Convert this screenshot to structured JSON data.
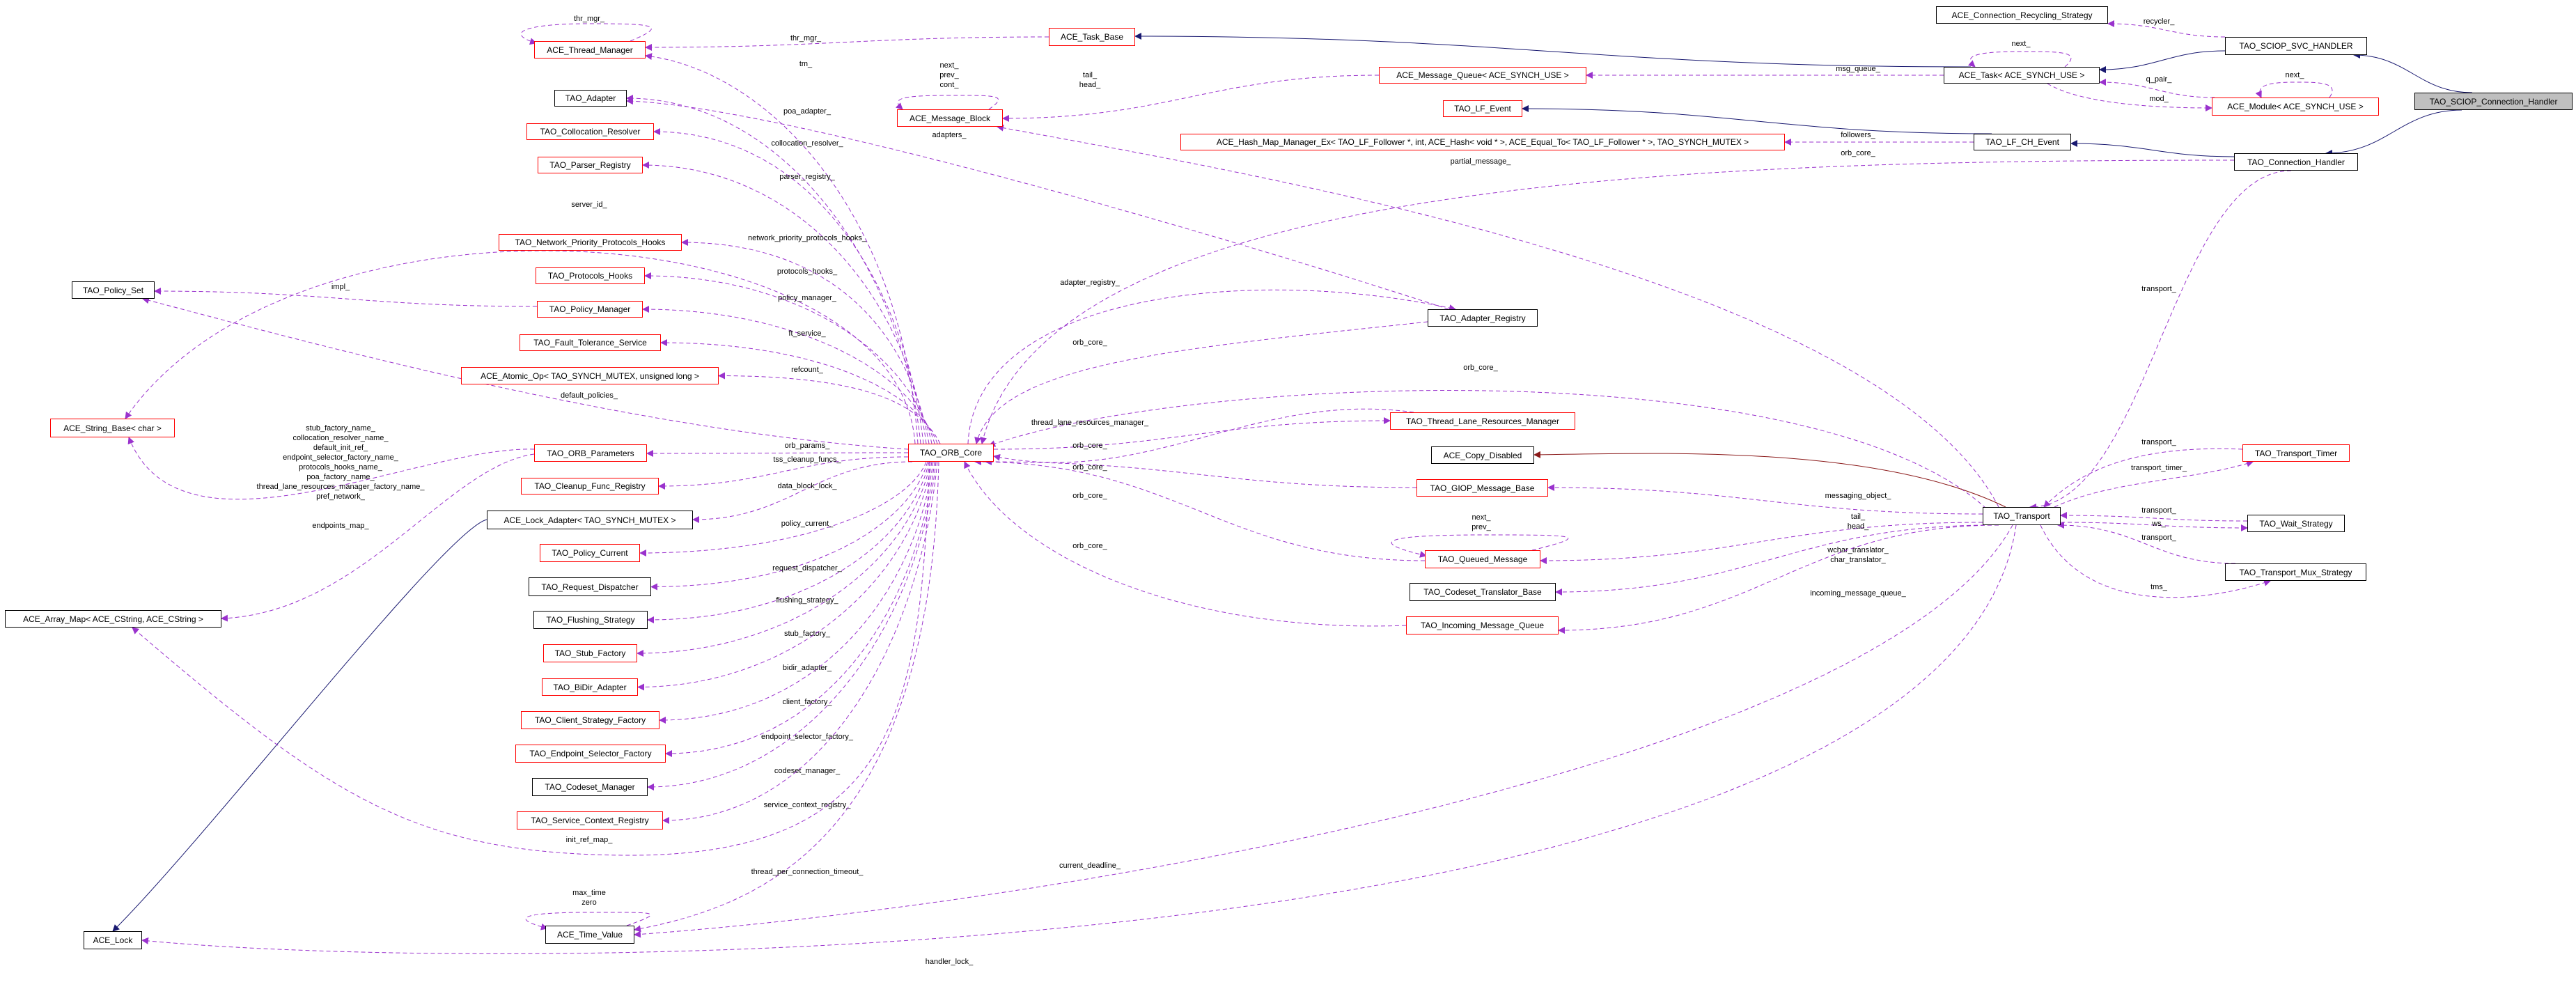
{
  "colors": {
    "member_edge": "#9a32cd",
    "public_inheritance": "#191970",
    "protected_inheritance": "#8b1a1a",
    "documented_border": "#000000",
    "undocumented_border": "#ff0000",
    "focus_fill": "#bfbfbf"
  },
  "nodes": [
    {
      "id": "TM",
      "label": "ACE_Thread_Manager",
      "border": "red"
    },
    {
      "id": "AD",
      "label": "TAO_Adapter",
      "border": "black"
    },
    {
      "id": "CR",
      "label": "TAO_Collocation_Resolver",
      "border": "red"
    },
    {
      "id": "PR",
      "label": "TAO_Parser_Registry",
      "border": "red"
    },
    {
      "id": "NP",
      "label": "TAO_Network_Priority_Protocols_Hooks",
      "border": "red"
    },
    {
      "id": "PH",
      "label": "TAO_Protocols_Hooks",
      "border": "red"
    },
    {
      "id": "PM",
      "label": "TAO_Policy_Manager",
      "border": "red"
    },
    {
      "id": "FT",
      "label": "TAO_Fault_Tolerance_Service",
      "border": "red"
    },
    {
      "id": "AO",
      "label": "ACE_Atomic_Op< TAO_SYNCH_MUTEX, unsigned long >",
      "border": "red"
    },
    {
      "id": "PS",
      "label": "TAO_Policy_Set",
      "border": "black"
    },
    {
      "id": "SB",
      "label": "ACE_String_Base< char >",
      "border": "red"
    },
    {
      "id": "OP",
      "label": "TAO_ORB_Parameters",
      "border": "red"
    },
    {
      "id": "CF",
      "label": "TAO_Cleanup_Func_Registry",
      "border": "red"
    },
    {
      "id": "LA",
      "label": "ACE_Lock_Adapter< TAO_SYNCH_MUTEX >",
      "border": "black"
    },
    {
      "id": "PC",
      "label": "TAO_Policy_Current",
      "border": "red"
    },
    {
      "id": "RD",
      "label": "TAO_Request_Dispatcher",
      "border": "black"
    },
    {
      "id": "FS",
      "label": "TAO_Flushing_Strategy",
      "border": "black"
    },
    {
      "id": "SF",
      "label": "TAO_Stub_Factory",
      "border": "red"
    },
    {
      "id": "BA",
      "label": "TAO_BiDir_Adapter",
      "border": "red"
    },
    {
      "id": "CS",
      "label": "TAO_Client_Strategy_Factory",
      "border": "red"
    },
    {
      "id": "ES",
      "label": "TAO_Endpoint_Selector_Factory",
      "border": "red"
    },
    {
      "id": "CM",
      "label": "TAO_Codeset_Manager",
      "border": "black"
    },
    {
      "id": "SC",
      "label": "TAO_Service_Context_Registry",
      "border": "red"
    },
    {
      "id": "TV",
      "label": "ACE_Time_Value",
      "border": "black"
    },
    {
      "id": "LK",
      "label": "ACE_Lock",
      "border": "black"
    },
    {
      "id": "AM",
      "label": "ACE_Array_Map< ACE_CString, ACE_CString >",
      "border": "black"
    },
    {
      "id": "TB",
      "label": "ACE_Task_Base",
      "border": "red"
    },
    {
      "id": "MB",
      "label": "ACE_Message_Block",
      "border": "red"
    },
    {
      "id": "MQ",
      "label": "ACE_Message_Queue< ACE_SYNCH_USE >",
      "border": "red"
    },
    {
      "id": "LE",
      "label": "TAO_LF_Event",
      "border": "red"
    },
    {
      "id": "HM",
      "label": "ACE_Hash_Map_Manager_Ex< TAO_LF_Follower *, int, ACE_Hash< void * >, ACE_Equal_To< TAO_LF_Follower * >, TAO_SYNCH_MUTEX >",
      "border": "red"
    },
    {
      "id": "AR",
      "label": "TAO_Adapter_Registry",
      "border": "black"
    },
    {
      "id": "OC",
      "label": "TAO_ORB_Core",
      "border": "red"
    },
    {
      "id": "TL",
      "label": "TAO_Thread_Lane_Resources_Manager",
      "border": "red"
    },
    {
      "id": "CD",
      "label": "ACE_Copy_Disabled",
      "border": "black"
    },
    {
      "id": "GM",
      "label": "TAO_GIOP_Message_Base",
      "border": "red"
    },
    {
      "id": "QM",
      "label": "TAO_Queued_Message",
      "border": "red"
    },
    {
      "id": "CT",
      "label": "TAO_Codeset_Translator_Base",
      "border": "black"
    },
    {
      "id": "IQ",
      "label": "TAO_Incoming_Message_Queue",
      "border": "red"
    },
    {
      "id": "RS",
      "label": "ACE_Connection_Recycling_Strategy",
      "border": "black"
    },
    {
      "id": "SV",
      "label": "TAO_SCIOP_SVC_HANDLER",
      "border": "black"
    },
    {
      "id": "AT",
      "label": "ACE_Task< ACE_SYNCH_USE >",
      "border": "black"
    },
    {
      "id": "MO",
      "label": "ACE_Module< ACE_SYNCH_USE >",
      "border": "red"
    },
    {
      "id": "SH",
      "label": "TAO_SCIOP_Connection_Handler",
      "border": "black",
      "focus": true
    },
    {
      "id": "LC",
      "label": "TAO_LF_CH_Event",
      "border": "black"
    },
    {
      "id": "CH",
      "label": "TAO_Connection_Handler",
      "border": "black"
    },
    {
      "id": "TT",
      "label": "TAO_Transport_Timer",
      "border": "red"
    },
    {
      "id": "TR",
      "label": "TAO_Transport",
      "border": "black"
    },
    {
      "id": "WS",
      "label": "TAO_Wait_Strategy",
      "border": "black"
    },
    {
      "id": "MX",
      "label": "TAO_Transport_Mux_Strategy",
      "border": "black"
    }
  ],
  "edges": [
    {
      "from": "TM",
      "to": "TM",
      "label": [
        "thr_mgr_"
      ],
      "kind": "member"
    },
    {
      "from": "TB",
      "to": "TM",
      "label": [
        "thr_mgr_"
      ],
      "kind": "member"
    },
    {
      "from": "OC",
      "to": "TM",
      "label": [
        "tm_"
      ],
      "kind": "member"
    },
    {
      "from": "OC",
      "to": "AD",
      "label": [
        "poa_adapter_"
      ],
      "kind": "member"
    },
    {
      "from": "OC",
      "to": "CR",
      "label": [
        "collocation_resolver_"
      ],
      "kind": "member"
    },
    {
      "from": "OC",
      "to": "PR",
      "label": [
        "parser_registry_"
      ],
      "kind": "member"
    },
    {
      "from": "OC",
      "to": "SB",
      "label": [
        "server_id_"
      ],
      "kind": "member"
    },
    {
      "from": "OC",
      "to": "NP",
      "label": [
        "network_priority_protocols_hooks_"
      ],
      "kind": "member"
    },
    {
      "from": "OC",
      "to": "PH",
      "label": [
        "protocols_hooks_"
      ],
      "kind": "member"
    },
    {
      "from": "OC",
      "to": "PM",
      "label": [
        "policy_manager_"
      ],
      "kind": "member"
    },
    {
      "from": "PM",
      "to": "PS",
      "label": [
        "impl_"
      ],
      "kind": "member"
    },
    {
      "from": "OC",
      "to": "FT",
      "label": [
        "ft_service_"
      ],
      "kind": "member"
    },
    {
      "from": "OC",
      "to": "AO",
      "label": [
        "refcount_"
      ],
      "kind": "member"
    },
    {
      "from": "OC",
      "to": "PS",
      "label": [
        "default_policies_"
      ],
      "kind": "member"
    },
    {
      "from": "OP",
      "to": "SB",
      "label": [
        "stub_factory_name_",
        "collocation_resolver_name_",
        "default_init_ref_",
        "endpoint_selector_factory_name_",
        "protocols_hooks_name_",
        "poa_factory_name_",
        "thread_lane_resources_manager_factory_name_",
        "pref_network_"
      ],
      "kind": "member"
    },
    {
      "from": "OP",
      "to": "AM",
      "label": [
        "endpoints_map_"
      ],
      "kind": "member"
    },
    {
      "from": "OC",
      "to": "OP",
      "label": [
        "orb_params_"
      ],
      "kind": "member"
    },
    {
      "from": "OC",
      "to": "CF",
      "label": [
        "tss_cleanup_funcs_"
      ],
      "kind": "member"
    },
    {
      "from": "OC",
      "to": "LA",
      "label": [
        "data_block_lock_"
      ],
      "kind": "member"
    },
    {
      "from": "LA",
      "to": "LK",
      "label": [],
      "kind": "public"
    },
    {
      "from": "OC",
      "to": "PC",
      "label": [
        "policy_current_"
      ],
      "kind": "member"
    },
    {
      "from": "OC",
      "to": "RD",
      "label": [
        "request_dispatcher_"
      ],
      "kind": "member"
    },
    {
      "from": "OC",
      "to": "FS",
      "label": [
        "flushing_strategy_"
      ],
      "kind": "member"
    },
    {
      "from": "OC",
      "to": "SF",
      "label": [
        "stub_factory_"
      ],
      "kind": "member"
    },
    {
      "from": "OC",
      "to": "BA",
      "label": [
        "bidir_adapter_"
      ],
      "kind": "member"
    },
    {
      "from": "OC",
      "to": "CS",
      "label": [
        "client_factory_"
      ],
      "kind": "member"
    },
    {
      "from": "OC",
      "to": "ES",
      "label": [
        "endpoint_selector_factory_"
      ],
      "kind": "member"
    },
    {
      "from": "OC",
      "to": "CM",
      "label": [
        "codeset_manager_"
      ],
      "kind": "member"
    },
    {
      "from": "OC",
      "to": "SC",
      "label": [
        "service_context_registry_"
      ],
      "kind": "member"
    },
    {
      "from": "OC",
      "to": "AM",
      "label": [
        "init_ref_map_"
      ],
      "kind": "member"
    },
    {
      "from": "OC",
      "to": "TV",
      "label": [
        "thread_per_connection_timeout_"
      ],
      "kind": "member"
    },
    {
      "from": "TV",
      "to": "TV",
      "label": [
        "max_time",
        "zero"
      ],
      "kind": "member"
    },
    {
      "from": "MB",
      "to": "MB",
      "label": [
        "next_",
        "prev_",
        "cont_"
      ],
      "kind": "member"
    },
    {
      "from": "MQ",
      "to": "MB",
      "label": [
        "tail_",
        "head_"
      ],
      "kind": "member"
    },
    {
      "from": "AR",
      "to": "AD",
      "label": [
        "adapters_"
      ],
      "kind": "member"
    },
    {
      "from": "AR",
      "to": "OC",
      "label": [
        "orb_core_"
      ],
      "kind": "member"
    },
    {
      "from": "OC",
      "to": "AR",
      "label": [
        "adapter_registry_"
      ],
      "kind": "member"
    },
    {
      "from": "TR",
      "to": "MB",
      "label": [
        "partial_message_"
      ],
      "kind": "member"
    },
    {
      "from": "CH",
      "to": "OC",
      "label": [
        "orb_core_"
      ],
      "kind": "member"
    },
    {
      "from": "TR",
      "to": "OC",
      "label": [
        "orb_core_"
      ],
      "kind": "member"
    },
    {
      "from": "OC",
      "to": "TL",
      "label": [
        "thread_lane_resources_manager_"
      ],
      "kind": "member"
    },
    {
      "from": "TL",
      "to": "OC",
      "label": [
        "orb_core_"
      ],
      "kind": "member"
    },
    {
      "from": "GM",
      "to": "OC",
      "label": [
        "orb_core_"
      ],
      "kind": "member"
    },
    {
      "from": "QM",
      "to": "OC",
      "label": [
        "orb_core_"
      ],
      "kind": "member"
    },
    {
      "from": "IQ",
      "to": "OC",
      "label": [
        "orb_core_"
      ],
      "kind": "member"
    },
    {
      "from": "QM",
      "to": "QM",
      "label": [
        "next_",
        "prev_"
      ],
      "kind": "member"
    },
    {
      "from": "TR",
      "to": "CD",
      "label": [],
      "kind": "protected"
    },
    {
      "from": "TR",
      "to": "GM",
      "label": [
        "messaging_object_"
      ],
      "kind": "member"
    },
    {
      "from": "TR",
      "to": "QM",
      "label": [
        "tail_",
        "head_"
      ],
      "kind": "member"
    },
    {
      "from": "TR",
      "to": "CT",
      "label": [
        "wchar_translator_",
        "char_translator_"
      ],
      "kind": "member"
    },
    {
      "from": "TR",
      "to": "IQ",
      "label": [
        "incoming_message_queue_"
      ],
      "kind": "member"
    },
    {
      "from": "TR",
      "to": "TV",
      "label": [
        "current_deadline_"
      ],
      "kind": "member"
    },
    {
      "from": "TR",
      "to": "LK",
      "label": [
        "handler_lock_"
      ],
      "kind": "member"
    },
    {
      "from": "CH",
      "to": "TR",
      "label": [
        "transport_"
      ],
      "kind": "member"
    },
    {
      "from": "TT",
      "to": "TR",
      "label": [
        "transport_"
      ],
      "kind": "member"
    },
    {
      "from": "TR",
      "to": "TT",
      "label": [
        "transport_timer_"
      ],
      "kind": "member"
    },
    {
      "from": "WS",
      "to": "TR",
      "label": [
        "transport_"
      ],
      "kind": "member"
    },
    {
      "from": "TR",
      "to": "WS",
      "label": [
        "ws_"
      ],
      "kind": "member"
    },
    {
      "from": "MX",
      "to": "TR",
      "label": [
        "transport_"
      ],
      "kind": "member"
    },
    {
      "from": "TR",
      "to": "MX",
      "label": [
        "tms_"
      ],
      "kind": "member"
    },
    {
      "from": "SH",
      "to": "SV",
      "label": [],
      "kind": "public"
    },
    {
      "from": "SH",
      "to": "CH",
      "label": [],
      "kind": "public"
    },
    {
      "from": "SV",
      "to": "AT",
      "label": [],
      "kind": "public"
    },
    {
      "from": "SV",
      "to": "RS",
      "label": [
        "recycler_"
      ],
      "kind": "member"
    },
    {
      "from": "AT",
      "to": "TB",
      "label": [],
      "kind": "public"
    },
    {
      "from": "AT",
      "to": "AT",
      "label": [
        "next_"
      ],
      "kind": "member"
    },
    {
      "from": "AT",
      "to": "MQ",
      "label": [
        "msg_queue_"
      ],
      "kind": "member"
    },
    {
      "from": "MO",
      "to": "AT",
      "label": [
        "q_pair_"
      ],
      "kind": "member"
    },
    {
      "from": "AT",
      "to": "MO",
      "label": [
        "mod_"
      ],
      "kind": "member"
    },
    {
      "from": "MO",
      "to": "MO",
      "label": [
        "next_"
      ],
      "kind": "member"
    },
    {
      "from": "CH",
      "to": "LC",
      "label": [],
      "kind": "public"
    },
    {
      "from": "LC",
      "to": "LE",
      "label": [],
      "kind": "public"
    },
    {
      "from": "LC",
      "to": "HM",
      "label": [
        "followers_"
      ],
      "kind": "member"
    }
  ]
}
